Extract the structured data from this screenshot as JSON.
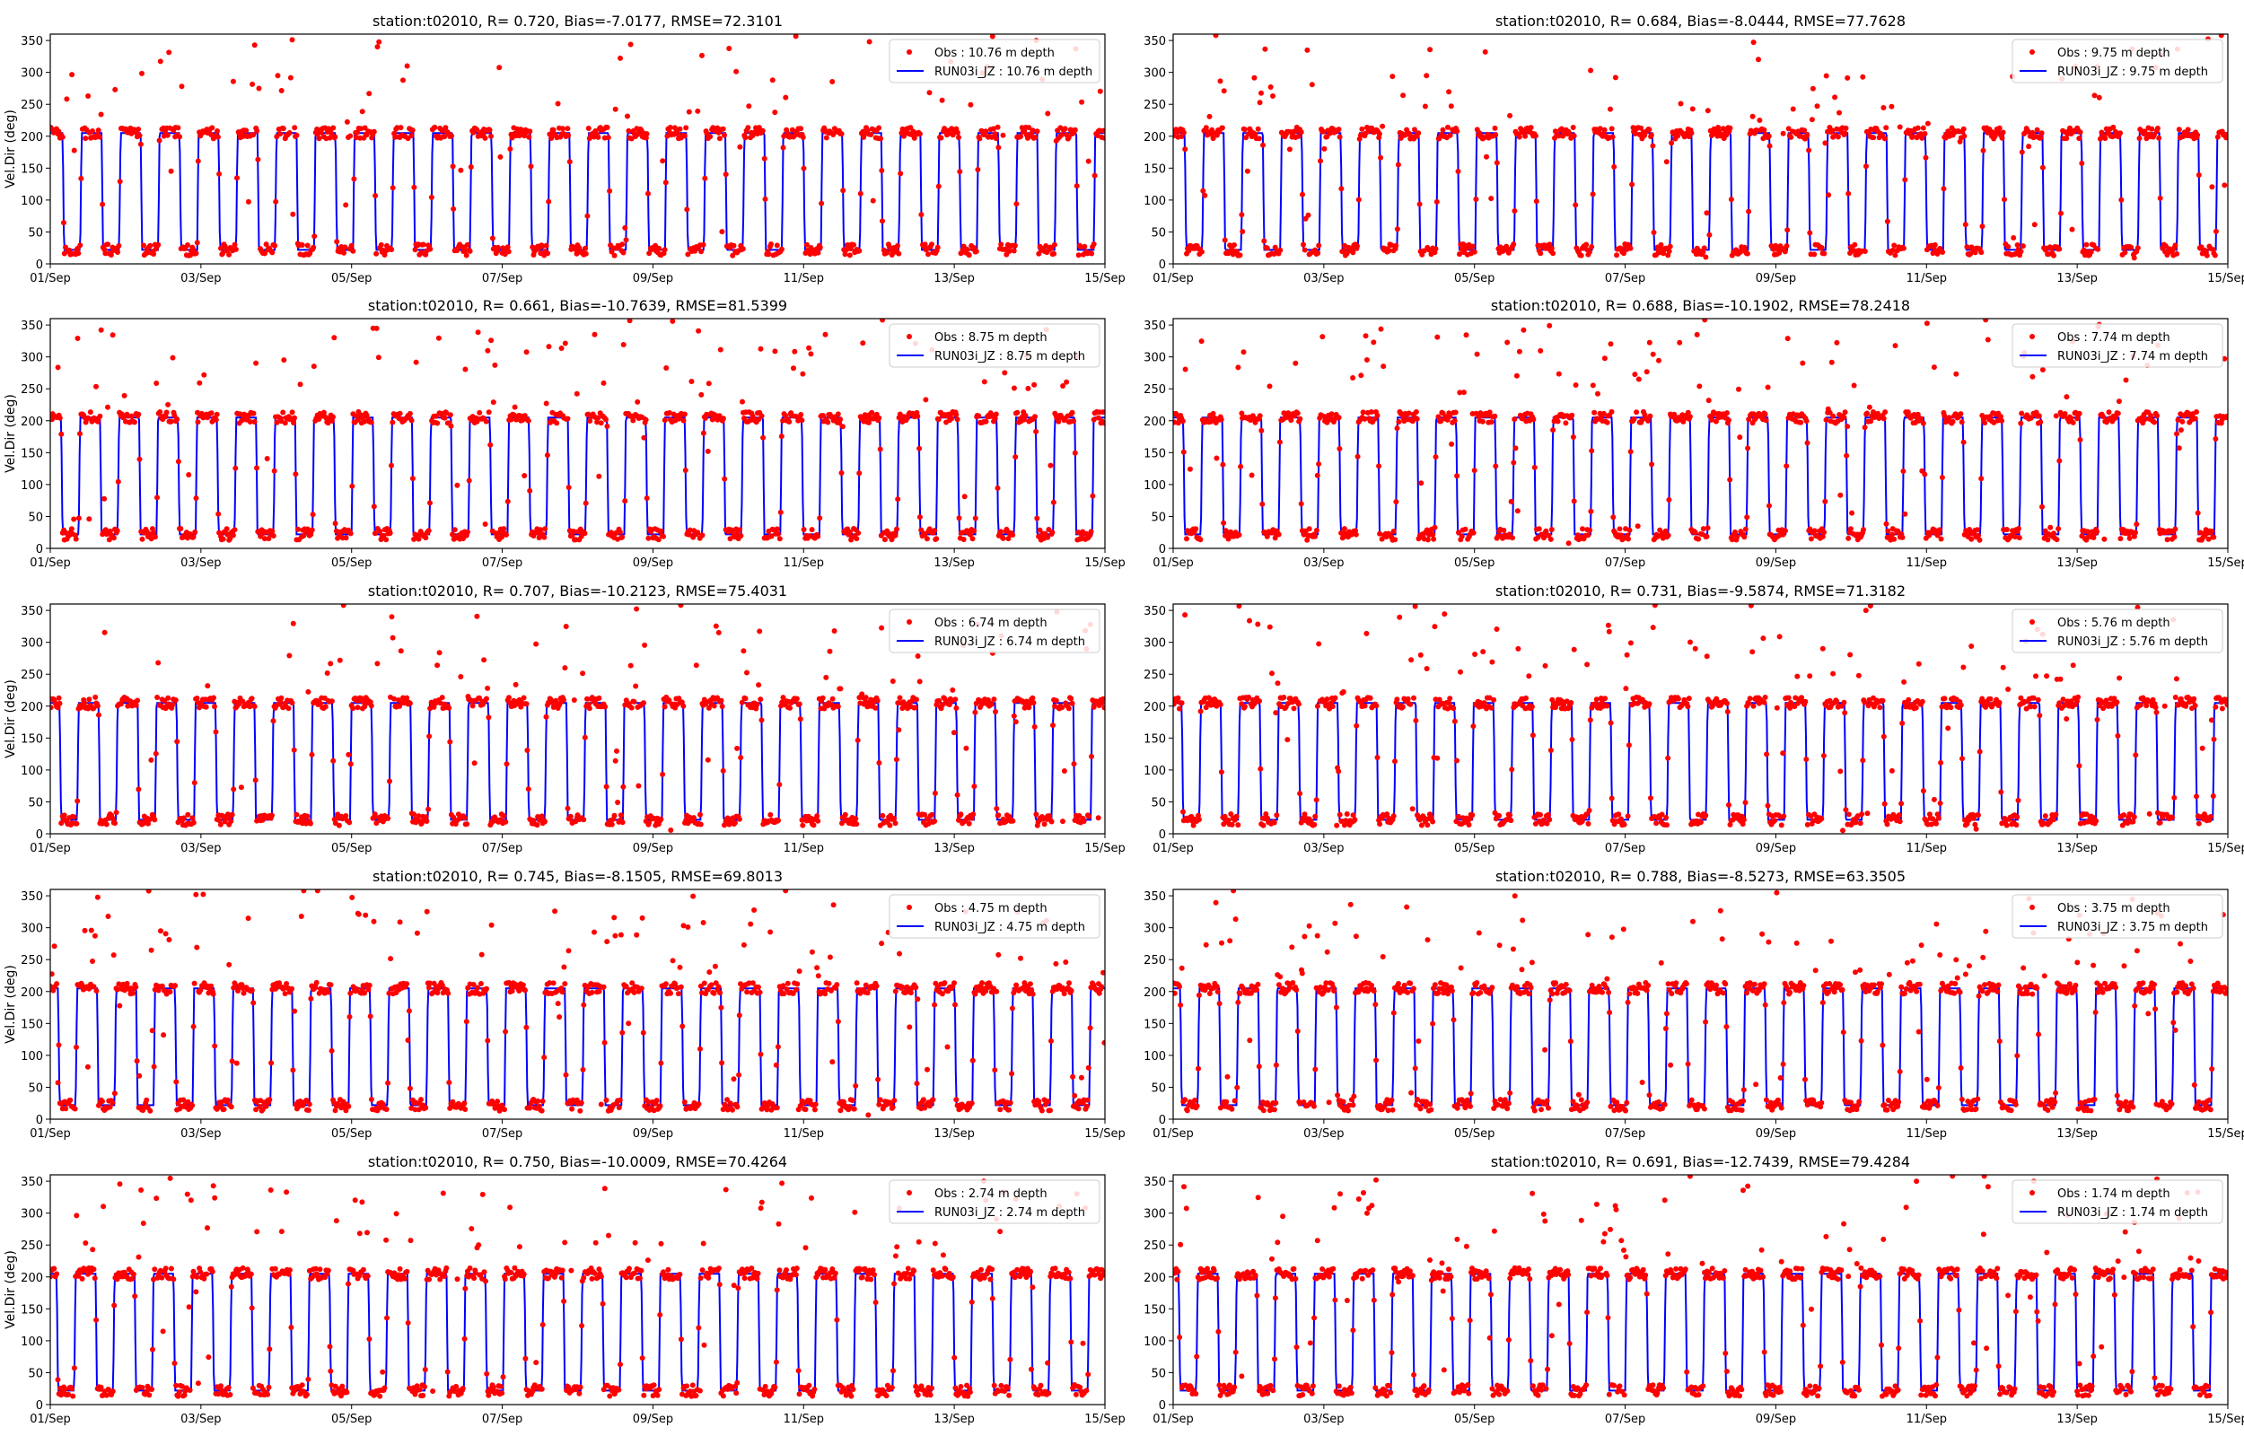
{
  "figure": {
    "rows": 5,
    "cols": 2
  },
  "style": {
    "obs_color": "#ff0000",
    "model_color": "#0000ff",
    "axis_color": "#000000"
  },
  "chart_data": [
    {
      "type": "line",
      "title": "station:t02010, R= 0.720, Bias=-7.0177, RMSE=72.3101",
      "ylabel": "Vel.Dir (deg)",
      "xlabel": "",
      "ylim": [
        0,
        360
      ],
      "yticks": [
        0,
        50,
        100,
        150,
        200,
        250,
        300,
        350
      ],
      "xticks": [
        "01/Sep",
        "03/Sep",
        "05/Sep",
        "07/Sep",
        "09/Sep",
        "11/Sep",
        "13/Sep",
        "15/Sep"
      ],
      "xrange_days": [
        0,
        14
      ],
      "legend": "top-right",
      "series": [
        {
          "name": "Obs : 10.76 m depth",
          "style": "scatter"
        },
        {
          "name": "RUN03i_JZ : 10.76 m depth",
          "style": "line"
        }
      ]
    },
    {
      "type": "line",
      "title": "station:t02010, R= 0.684, Bias=-8.0444, RMSE=77.7628",
      "ylabel": "",
      "xlabel": "",
      "ylim": [
        0,
        360
      ],
      "yticks": [
        0,
        50,
        100,
        150,
        200,
        250,
        300,
        350
      ],
      "xticks": [
        "01/Sep",
        "03/Sep",
        "05/Sep",
        "07/Sep",
        "09/Sep",
        "11/Sep",
        "13/Sep",
        "15/Sep"
      ],
      "xrange_days": [
        0,
        14
      ],
      "legend": "top-right",
      "series": [
        {
          "name": "Obs : 9.75 m depth",
          "style": "scatter"
        },
        {
          "name": "RUN03i_JZ : 9.75 m depth",
          "style": "line"
        }
      ]
    },
    {
      "type": "line",
      "title": "station:t02010, R= 0.661, Bias=-10.7639, RMSE=81.5399",
      "ylabel": "Vel.Dir (deg)",
      "xlabel": "",
      "ylim": [
        0,
        360
      ],
      "yticks": [
        0,
        50,
        100,
        150,
        200,
        250,
        300,
        350
      ],
      "xticks": [
        "01/Sep",
        "03/Sep",
        "05/Sep",
        "07/Sep",
        "09/Sep",
        "11/Sep",
        "13/Sep",
        "15/Sep"
      ],
      "xrange_days": [
        0,
        14
      ],
      "legend": "top-right",
      "series": [
        {
          "name": "Obs : 8.75 m depth",
          "style": "scatter"
        },
        {
          "name": "RUN03i_JZ : 8.75 m depth",
          "style": "line"
        }
      ]
    },
    {
      "type": "line",
      "title": "station:t02010, R= 0.688, Bias=-10.1902, RMSE=78.2418",
      "ylabel": "",
      "xlabel": "",
      "ylim": [
        0,
        360
      ],
      "yticks": [
        0,
        50,
        100,
        150,
        200,
        250,
        300,
        350
      ],
      "xticks": [
        "01/Sep",
        "03/Sep",
        "05/Sep",
        "07/Sep",
        "09/Sep",
        "11/Sep",
        "13/Sep",
        "15/Sep"
      ],
      "xrange_days": [
        0,
        14
      ],
      "legend": "top-right",
      "series": [
        {
          "name": "Obs : 7.74 m depth",
          "style": "scatter"
        },
        {
          "name": "RUN03i_JZ : 7.74 m depth",
          "style": "line"
        }
      ]
    },
    {
      "type": "line",
      "title": "station:t02010, R= 0.707, Bias=-10.2123, RMSE=75.4031",
      "ylabel": "Vel.Dir (deg)",
      "xlabel": "",
      "ylim": [
        0,
        360
      ],
      "yticks": [
        0,
        50,
        100,
        150,
        200,
        250,
        300,
        350
      ],
      "xticks": [
        "01/Sep",
        "03/Sep",
        "05/Sep",
        "07/Sep",
        "09/Sep",
        "11/Sep",
        "13/Sep",
        "15/Sep"
      ],
      "xrange_days": [
        0,
        14
      ],
      "legend": "top-right",
      "series": [
        {
          "name": "Obs : 6.74 m depth",
          "style": "scatter"
        },
        {
          "name": "RUN03i_JZ : 6.74 m depth",
          "style": "line"
        }
      ]
    },
    {
      "type": "line",
      "title": "station:t02010, R= 0.731, Bias=-9.5874, RMSE=71.3182",
      "ylabel": "",
      "xlabel": "",
      "ylim": [
        0,
        360
      ],
      "yticks": [
        0,
        50,
        100,
        150,
        200,
        250,
        300,
        350
      ],
      "xticks": [
        "01/Sep",
        "03/Sep",
        "05/Sep",
        "07/Sep",
        "09/Sep",
        "11/Sep",
        "13/Sep",
        "15/Sep"
      ],
      "xrange_days": [
        0,
        14
      ],
      "legend": "top-right",
      "series": [
        {
          "name": "Obs : 5.76 m depth",
          "style": "scatter"
        },
        {
          "name": "RUN03i_JZ : 5.76 m depth",
          "style": "line"
        }
      ]
    },
    {
      "type": "line",
      "title": "station:t02010, R= 0.745, Bias=-8.1505, RMSE=69.8013",
      "ylabel": "Vel.Dir (deg)",
      "xlabel": "",
      "ylim": [
        0,
        360
      ],
      "yticks": [
        0,
        50,
        100,
        150,
        200,
        250,
        300,
        350
      ],
      "xticks": [
        "01/Sep",
        "03/Sep",
        "05/Sep",
        "07/Sep",
        "09/Sep",
        "11/Sep",
        "13/Sep",
        "15/Sep"
      ],
      "xrange_days": [
        0,
        14
      ],
      "legend": "top-right",
      "series": [
        {
          "name": "Obs : 4.75 m depth",
          "style": "scatter"
        },
        {
          "name": "RUN03i_JZ : 4.75 m depth",
          "style": "line"
        }
      ]
    },
    {
      "type": "line",
      "title": "station:t02010, R= 0.788, Bias=-8.5273, RMSE=63.3505",
      "ylabel": "",
      "xlabel": "",
      "ylim": [
        0,
        360
      ],
      "yticks": [
        0,
        50,
        100,
        150,
        200,
        250,
        300,
        350
      ],
      "xticks": [
        "01/Sep",
        "03/Sep",
        "05/Sep",
        "07/Sep",
        "09/Sep",
        "11/Sep",
        "13/Sep",
        "15/Sep"
      ],
      "xrange_days": [
        0,
        14
      ],
      "legend": "top-right",
      "series": [
        {
          "name": "Obs : 3.75 m depth",
          "style": "scatter"
        },
        {
          "name": "RUN03i_JZ : 3.75 m depth",
          "style": "line"
        }
      ]
    },
    {
      "type": "line",
      "title": "station:t02010, R= 0.750, Bias=-10.0009, RMSE=70.4264",
      "ylabel": "Vel.Dir (deg)",
      "xlabel": "",
      "ylim": [
        0,
        360
      ],
      "yticks": [
        0,
        50,
        100,
        150,
        200,
        250,
        300,
        350
      ],
      "xticks": [
        "01/Sep",
        "03/Sep",
        "05/Sep",
        "07/Sep",
        "09/Sep",
        "11/Sep",
        "13/Sep",
        "15/Sep"
      ],
      "xrange_days": [
        0,
        14
      ],
      "legend": "top-right",
      "series": [
        {
          "name": "Obs : 2.74 m depth",
          "style": "scatter"
        },
        {
          "name": "RUN03i_JZ : 2.74 m depth",
          "style": "line"
        }
      ]
    },
    {
      "type": "line",
      "title": "station:t02010, R= 0.691, Bias=-12.7439, RMSE=79.4284",
      "ylabel": "",
      "xlabel": "",
      "ylim": [
        0,
        360
      ],
      "yticks": [
        0,
        50,
        100,
        150,
        200,
        250,
        300,
        350
      ],
      "xticks": [
        "01/Sep",
        "03/Sep",
        "05/Sep",
        "07/Sep",
        "09/Sep",
        "11/Sep",
        "13/Sep",
        "15/Sep"
      ],
      "xrange_days": [
        0,
        14
      ],
      "legend": "top-right",
      "series": [
        {
          "name": "Obs : 1.74 m depth",
          "style": "scatter"
        },
        {
          "name": "RUN03i_JZ : 1.74 m depth",
          "style": "line"
        }
      ]
    }
  ],
  "model_signal": {
    "note_semantics": "approximate shape of the modelled direction series (deg) versus time (days since 01/Sep)",
    "high_value": 205,
    "low_value": 22,
    "period_days": 0.5175,
    "high_fraction": 0.55
  }
}
